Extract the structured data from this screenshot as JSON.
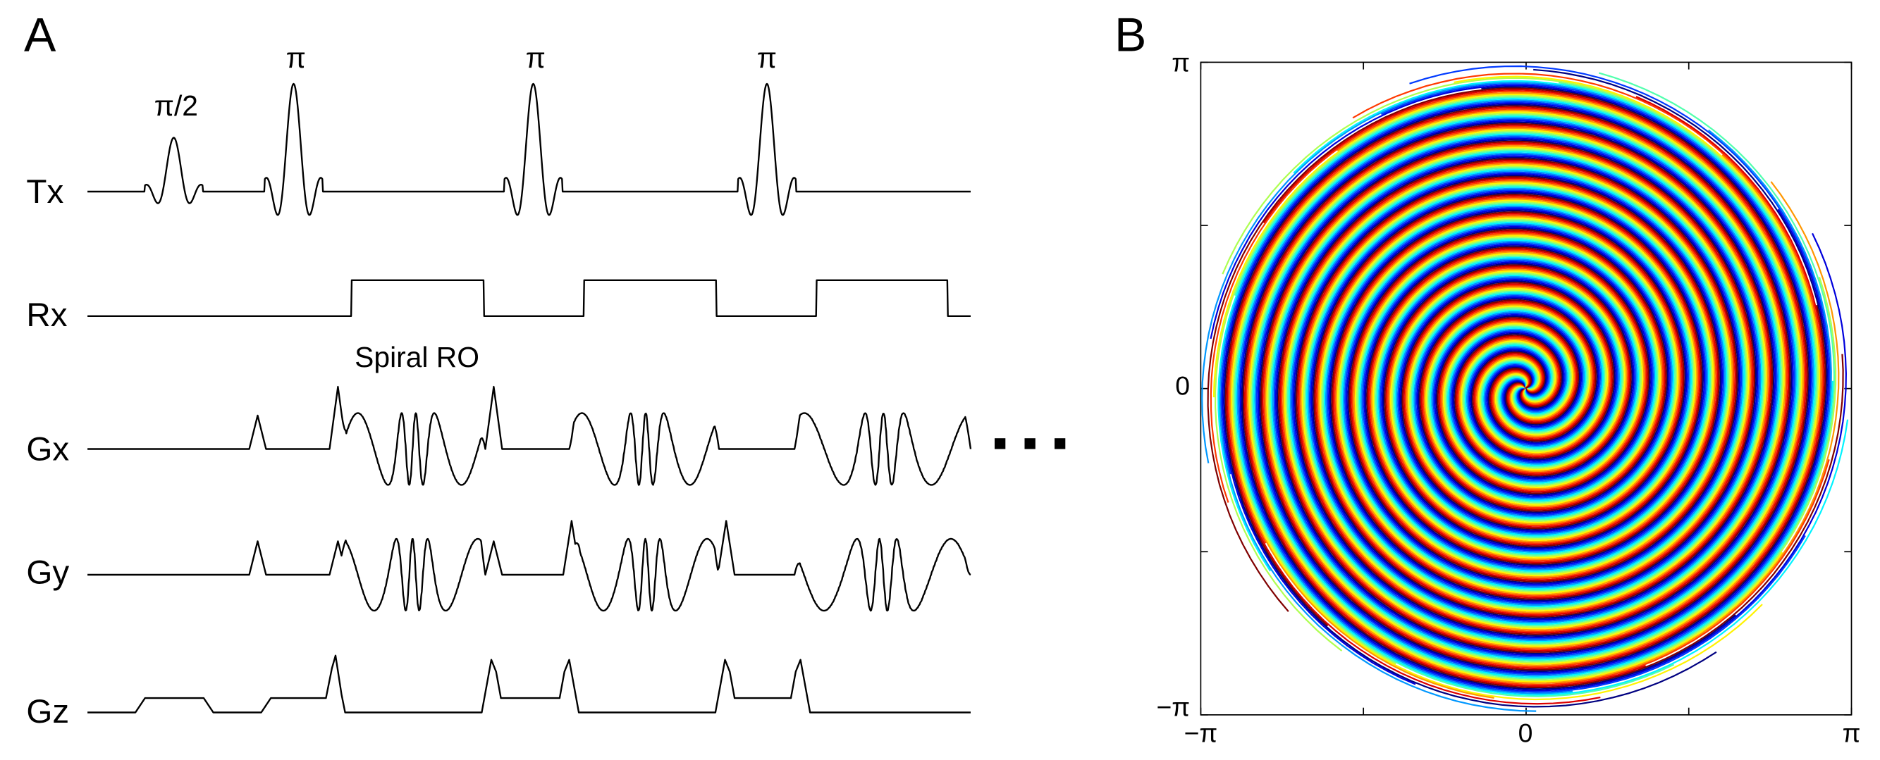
{
  "panel_labels": [
    "A",
    "B"
  ],
  "pulse_labels": [
    "π/2",
    "π",
    "π",
    "π"
  ],
  "channels": [
    "Tx",
    "Rx",
    "Gx",
    "Gy",
    "Gz"
  ],
  "readout_label": "Spiral RO",
  "k_space": {
    "x_tick_labels": [
      "−π",
      "0",
      "π"
    ],
    "y_tick_labels": [
      "π",
      "0",
      "−π"
    ]
  }
}
